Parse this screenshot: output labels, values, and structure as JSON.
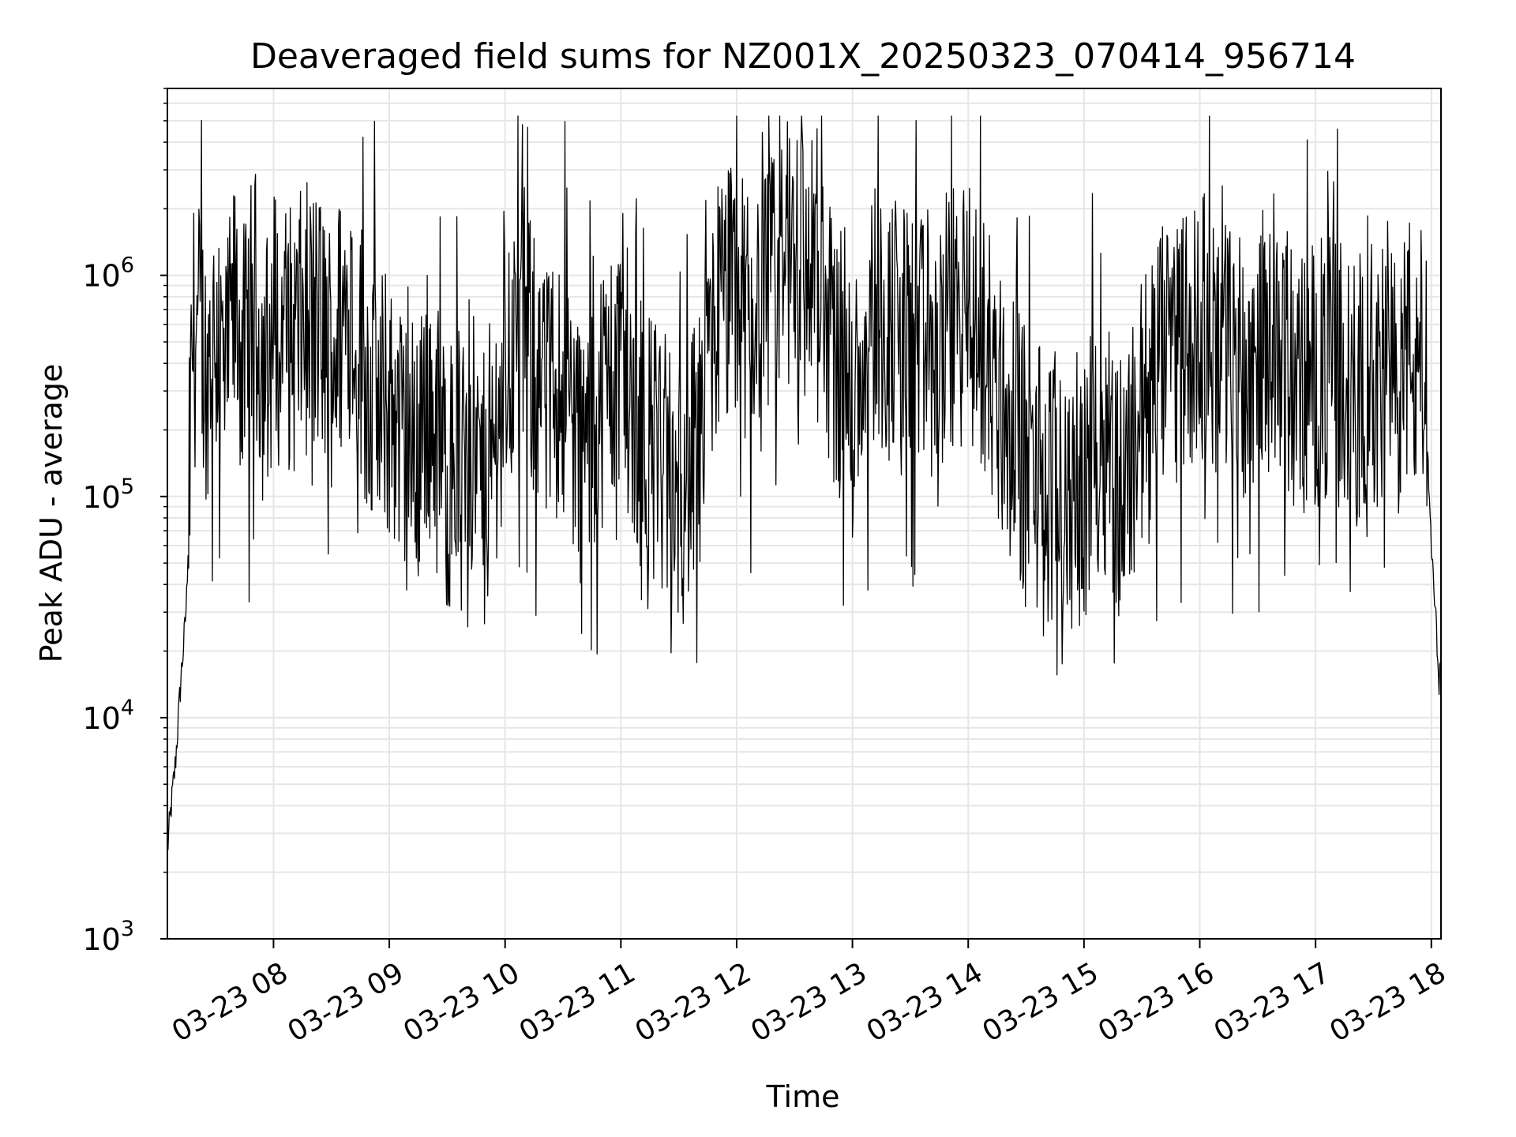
{
  "chart_data": {
    "type": "line",
    "title": "Deaveraged field sums for NZ001X_20250323_070414_956714",
    "xlabel": "Time",
    "ylabel": "Peak ADU - average",
    "yscale": "log",
    "ylim": [
      1000,
      7000000
    ],
    "xlim": [
      "2025-03-23 07:05",
      "2025-03-23 18:05"
    ],
    "grid": true,
    "line_color": "#000000",
    "y_ticks": [
      {
        "value": 1000,
        "base": "10",
        "exp": "3"
      },
      {
        "value": 10000,
        "base": "10",
        "exp": "4"
      },
      {
        "value": 100000,
        "base": "10",
        "exp": "5"
      },
      {
        "value": 1000000,
        "base": "10",
        "exp": "6"
      }
    ],
    "x_ticks": [
      {
        "value": "2025-03-23 08:00",
        "label": "03-23 08"
      },
      {
        "value": "2025-03-23 09:00",
        "label": "03-23 09"
      },
      {
        "value": "2025-03-23 10:00",
        "label": "03-23 10"
      },
      {
        "value": "2025-03-23 11:00",
        "label": "03-23 11"
      },
      {
        "value": "2025-03-23 12:00",
        "label": "03-23 12"
      },
      {
        "value": "2025-03-23 13:00",
        "label": "03-23 13"
      },
      {
        "value": "2025-03-23 14:00",
        "label": "03-23 14"
      },
      {
        "value": "2025-03-23 15:00",
        "label": "03-23 15"
      },
      {
        "value": "2025-03-23 16:00",
        "label": "03-23 16"
      },
      {
        "value": "2025-03-23 17:00",
        "label": "03-23 17"
      },
      {
        "value": "2025-03-23 18:00",
        "label": "03-23 18"
      }
    ],
    "series": [
      {
        "x": [
          "2025-03-23 07:05",
          "2025-03-23 07:07",
          "2025-03-23 07:09",
          "2025-03-23 07:10",
          "2025-03-23 07:12",
          "2025-03-23 07:14",
          "2025-03-23 07:15",
          "2025-03-23 07:16",
          "2025-03-23 07:18",
          "2025-03-23 07:20",
          "2025-03-23 07:25",
          "2025-03-23 07:30",
          "2025-03-23 07:35",
          "2025-03-23 07:40",
          "2025-03-23 07:45",
          "2025-03-23 07:50",
          "2025-03-23 07:55",
          "2025-03-23 08:00",
          "2025-03-23 08:10",
          "2025-03-23 08:20",
          "2025-03-23 08:30",
          "2025-03-23 08:40",
          "2025-03-23 08:50",
          "2025-03-23 09:00",
          "2025-03-23 09:10",
          "2025-03-23 09:20",
          "2025-03-23 09:30",
          "2025-03-23 09:40",
          "2025-03-23 09:50",
          "2025-03-23 10:00",
          "2025-03-23 10:10",
          "2025-03-23 10:20",
          "2025-03-23 10:30",
          "2025-03-23 10:40",
          "2025-03-23 10:50",
          "2025-03-23 11:00",
          "2025-03-23 11:10",
          "2025-03-23 11:20",
          "2025-03-23 11:30",
          "2025-03-23 11:40",
          "2025-03-23 11:50",
          "2025-03-23 12:00",
          "2025-03-23 12:10",
          "2025-03-23 12:20",
          "2025-03-23 12:30",
          "2025-03-23 12:40",
          "2025-03-23 12:50",
          "2025-03-23 13:00",
          "2025-03-23 13:10",
          "2025-03-23 13:20",
          "2025-03-23 13:30",
          "2025-03-23 13:40",
          "2025-03-23 13:50",
          "2025-03-23 14:00",
          "2025-03-23 14:10",
          "2025-03-23 14:20",
          "2025-03-23 14:30",
          "2025-03-23 14:40",
          "2025-03-23 14:50",
          "2025-03-23 15:00",
          "2025-03-23 15:10",
          "2025-03-23 15:20",
          "2025-03-23 15:30",
          "2025-03-23 15:40",
          "2025-03-23 15:50",
          "2025-03-23 16:00",
          "2025-03-23 16:10",
          "2025-03-23 16:20",
          "2025-03-23 16:30",
          "2025-03-23 16:40",
          "2025-03-23 16:50",
          "2025-03-23 17:00",
          "2025-03-23 17:10",
          "2025-03-23 17:20",
          "2025-03-23 17:30",
          "2025-03-23 17:40",
          "2025-03-23 17:50",
          "2025-03-23 17:55",
          "2025-03-23 17:58",
          "2025-03-23 18:00",
          "2025-03-23 18:02",
          "2025-03-23 18:04",
          "2025-03-23 18:05"
        ],
        "y": [
          2500,
          4000,
          6000,
          8000,
          15000,
          25000,
          35000,
          80000,
          500000,
          600000,
          400000,
          550000,
          300000,
          700000,
          400000,
          800000,
          350000,
          600000,
          500000,
          700000,
          450000,
          800000,
          300000,
          250000,
          150000,
          280000,
          120000,
          200000,
          100000,
          400000,
          600000,
          250000,
          350000,
          150000,
          300000,
          400000,
          200000,
          150000,
          100000,
          150000,
          700000,
          800000,
          600000,
          900000,
          1500000,
          1000000,
          500000,
          250000,
          700000,
          600000,
          500000,
          400000,
          600000,
          700000,
          450000,
          200000,
          150000,
          120000,
          100000,
          110000,
          200000,
          100000,
          250000,
          400000,
          500000,
          600000,
          500000,
          400000,
          450000,
          600000,
          300000,
          350000,
          400000,
          300000,
          350000,
          300000,
          500000,
          300000,
          150000,
          60000,
          30000,
          15000,
          18000
        ]
      }
    ]
  }
}
